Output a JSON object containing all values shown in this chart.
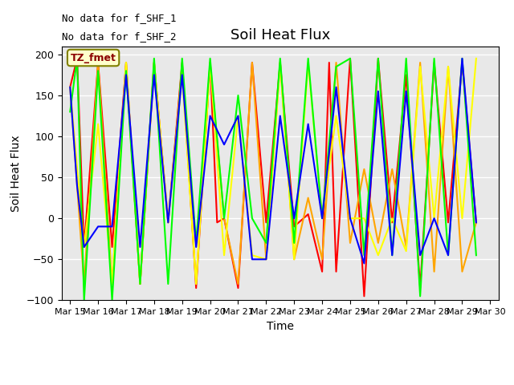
{
  "title": "Soil Heat Flux",
  "xlabel": "Time",
  "ylabel": "Soil Heat Flux",
  "ylim": [
    -100,
    210
  ],
  "yticks": [
    -100,
    -50,
    0,
    50,
    100,
    150,
    200
  ],
  "annotation_text1": "No data for f_SHF_1",
  "annotation_text2": "No data for f_SHF_2",
  "legend_box_text": "TZ_fmet",
  "legend_box_color": "#FFFFCC",
  "legend_box_text_color": "#8B0000",
  "background_color": "#E8E8E8",
  "grid_color": "#FFFFFF",
  "series": {
    "SHF1": {
      "color": "red",
      "x": [
        0,
        0.25,
        0.5,
        1.0,
        1.5,
        2.0,
        2.5,
        3.0,
        3.5,
        4.0,
        4.5,
        5.0,
        5.25,
        5.5,
        6.0,
        6.5,
        7.0,
        7.5,
        8.0,
        8.5,
        9.0,
        9.25,
        9.5,
        10.0,
        10.5,
        11.0,
        11.5,
        12.0,
        12.5,
        13.0,
        13.5,
        14.0,
        14.5
      ],
      "y": [
        160,
        195,
        -35,
        190,
        -35,
        190,
        -80,
        190,
        -5,
        190,
        -85,
        190,
        -5,
        0,
        -85,
        190,
        -5,
        190,
        -10,
        5,
        -65,
        190,
        -65,
        195,
        -95,
        195,
        -5,
        175,
        -85,
        190,
        -5,
        190,
        -5
      ]
    },
    "SHF2": {
      "color": "orange",
      "x": [
        0,
        0.5,
        1.0,
        1.5,
        2.0,
        2.5,
        3.0,
        3.5,
        4.0,
        4.5,
        5.0,
        5.5,
        6.0,
        6.5,
        7.0,
        7.5,
        8.0,
        8.5,
        9.0,
        9.5,
        10.0,
        10.5,
        11.0,
        11.5,
        12.0,
        12.5,
        13.0,
        13.5,
        14.0,
        14.5
      ],
      "y": [
        160,
        -80,
        190,
        -80,
        190,
        -80,
        190,
        -5,
        185,
        -80,
        190,
        0,
        -80,
        190,
        -50,
        190,
        -50,
        25,
        -50,
        190,
        -30,
        60,
        -30,
        60,
        -35,
        190,
        -65,
        185,
        -65,
        -5
      ]
    },
    "SHF3": {
      "color": "yellow",
      "x": [
        0,
        0.5,
        1.0,
        1.5,
        2.0,
        2.5,
        3.0,
        3.5,
        4.0,
        4.5,
        5.0,
        5.5,
        6.0,
        6.5,
        7.0,
        7.5,
        8.0,
        8.5,
        9.0,
        9.5,
        10.0,
        10.5,
        11.0,
        11.5,
        12.0,
        12.5,
        13.0,
        13.5,
        14.0,
        14.5
      ],
      "y": [
        160,
        -35,
        115,
        -80,
        190,
        -80,
        190,
        -5,
        175,
        -80,
        190,
        -45,
        125,
        -45,
        -50,
        190,
        -50,
        190,
        0,
        125,
        0,
        0,
        -45,
        0,
        -40,
        185,
        0,
        185,
        0,
        195
      ]
    },
    "SHF4": {
      "color": "lime",
      "x": [
        0,
        0.25,
        0.5,
        1.0,
        1.5,
        2.0,
        2.5,
        3.0,
        3.5,
        4.0,
        4.5,
        5.0,
        5.5,
        6.0,
        6.5,
        7.0,
        7.5,
        8.0,
        8.5,
        9.0,
        9.5,
        10.0,
        10.5,
        11.0,
        11.5,
        12.0,
        12.5,
        13.0,
        13.5,
        14.0,
        14.5
      ],
      "y": [
        130,
        195,
        -100,
        180,
        -100,
        180,
        -80,
        195,
        -80,
        195,
        -30,
        195,
        0,
        150,
        0,
        -30,
        195,
        -30,
        195,
        0,
        185,
        195,
        -45,
        195,
        -45,
        195,
        -95,
        195,
        -45,
        195,
        -45
      ]
    },
    "SHF5": {
      "color": "blue",
      "x": [
        0,
        0.25,
        0.5,
        1.0,
        1.5,
        2.0,
        2.5,
        3.0,
        3.5,
        4.0,
        4.5,
        5.0,
        5.5,
        6.0,
        6.5,
        7.0,
        7.5,
        8.0,
        8.5,
        9.0,
        9.5,
        10.0,
        10.5,
        11.0,
        11.5,
        12.0,
        12.5,
        13.0,
        13.5,
        14.0,
        14.5
      ],
      "y": [
        160,
        40,
        -35,
        -10,
        -10,
        175,
        -35,
        175,
        -5,
        175,
        -35,
        125,
        90,
        125,
        -50,
        -50,
        125,
        0,
        115,
        0,
        160,
        0,
        -55,
        155,
        -45,
        155,
        -45,
        0,
        -45,
        195,
        -5
      ]
    }
  },
  "xtick_labels": [
    "Mar 15",
    "Mar 16",
    "Mar 17",
    "Mar 18",
    "Mar 19",
    "Mar 20",
    "Mar 21",
    "Mar 22",
    "Mar 23",
    "Mar 24",
    "Mar 25",
    "Mar 26",
    "Mar 27",
    "Mar 28",
    "Mar 29",
    "Mar 30"
  ],
  "xtick_positions": [
    0,
    1,
    2,
    3,
    4,
    5,
    6,
    7,
    8,
    9,
    10,
    11,
    12,
    13,
    14,
    15
  ]
}
